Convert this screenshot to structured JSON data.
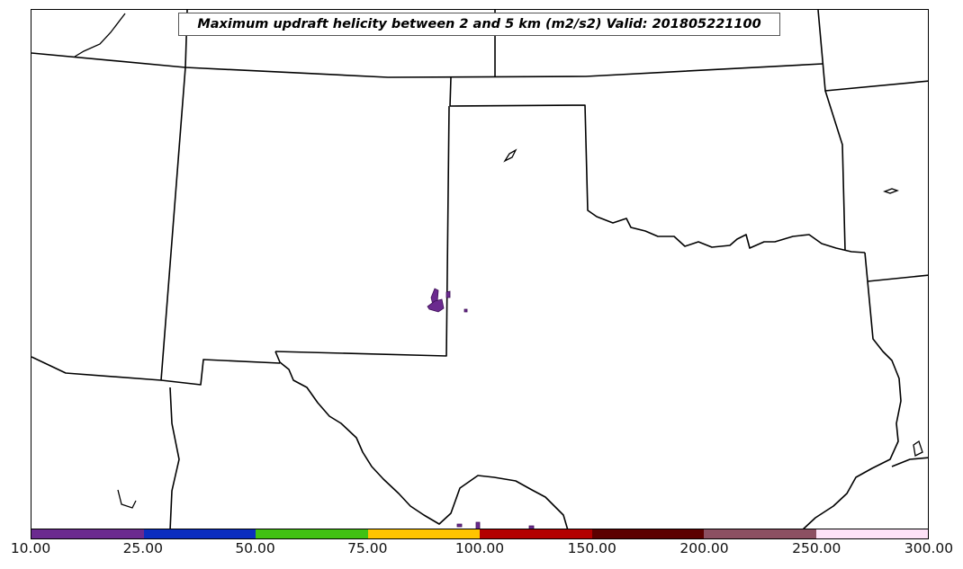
{
  "title": "Maximum updraft helicity between 2 and 5 km (m2/s2) Valid: 201805221100",
  "colorbar": {
    "ticks": [
      "10.00",
      "25.00",
      "50.00",
      "75.00",
      "100.00",
      "150.00",
      "200.00",
      "250.00",
      "300.00"
    ],
    "colors": [
      "#6b2a8f",
      "#0b2dbf",
      "#41c113",
      "#ffc400",
      "#b30000",
      "#5c0000",
      "#8c5062",
      "#fde2f7"
    ]
  },
  "map": {
    "border_color": "#000000",
    "helicity_fill_color": "#6b2a8f"
  }
}
